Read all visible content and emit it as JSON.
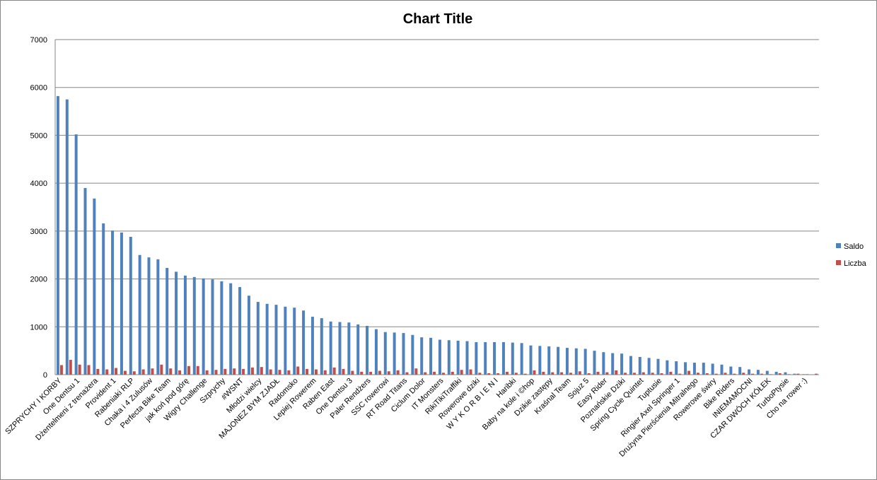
{
  "chart_data": {
    "type": "bar",
    "title": "Chart Title",
    "categories": [
      "SZPRYCHY I KORBY",
      null,
      "One Dentsu 1",
      null,
      "Dżentelmeni z trenażera",
      null,
      "Provident 1",
      null,
      "Rabeniaki RLP",
      null,
      "Chaka i 4 Zulusów",
      null,
      "Perfecta Bike Team",
      null,
      "jak koń pod górę",
      null,
      "Wigry Challenge",
      null,
      "Szprychy",
      null,
      "#WSNT",
      null,
      "Młodzi wielcy",
      null,
      "MAJONEZ BYM ZJADŁ",
      null,
      "Radomsko",
      null,
      "Lepiej Rowerem",
      null,
      "Raben East",
      null,
      "One Dentsu 3",
      null,
      "Paler Rendżers",
      null,
      "SSC rowerowi",
      null,
      "RT Road Titans",
      null,
      "Ciclum Dolor",
      null,
      "IT Monsters",
      null,
      "RikiTikiTraffiki",
      null,
      "Rowerowe dziki",
      null,
      "W Y K O R B I E N I",
      null,
      "Haribki",
      null,
      "Baby na kole i ©hop",
      null,
      "Dzikie zastępy",
      null,
      "Kraśnal Team",
      null,
      "Sojuz 5",
      null,
      "Easy Rider",
      null,
      "Poznańskie Dziki",
      null,
      "Spring Cycle Quintet",
      null,
      "Tuptusie",
      null,
      "Ringier Axel Springer 1",
      null,
      "Drużyna Pierścienia Mitralnego",
      null,
      "Rowerowe świry",
      null,
      "Bike Riders",
      null,
      "INIEMAMOCNI",
      null,
      "CZAR DWÓCH KÓŁEK",
      null,
      "TurboPtysie",
      null,
      "Cho na rower :)",
      null
    ],
    "series": [
      {
        "name": "Saldo",
        "color": "#4f81bd",
        "values": [
          5820,
          5750,
          5020,
          3900,
          3680,
          3160,
          3010,
          2970,
          2880,
          2500,
          2450,
          2410,
          2230,
          2150,
          2070,
          2040,
          2010,
          1990,
          1950,
          1910,
          1830,
          1650,
          1520,
          1480,
          1460,
          1420,
          1400,
          1340,
          1210,
          1180,
          1110,
          1100,
          1090,
          1050,
          1020,
          950,
          890,
          880,
          870,
          830,
          780,
          770,
          730,
          720,
          710,
          700,
          680,
          680,
          680,
          680,
          670,
          660,
          610,
          600,
          590,
          580,
          560,
          550,
          540,
          500,
          470,
          450,
          440,
          390,
          370,
          350,
          330,
          300,
          280,
          260,
          250,
          250,
          230,
          210,
          170,
          160,
          110,
          100,
          80,
          60,
          50,
          20,
          10,
          5
        ]
      },
      {
        "name": "Liczba",
        "color": "#c0504d",
        "values": [
          200,
          310,
          210,
          200,
          120,
          110,
          140,
          80,
          70,
          110,
          130,
          210,
          130,
          90,
          180,
          180,
          90,
          100,
          120,
          130,
          120,
          150,
          160,
          110,
          100,
          90,
          170,
          120,
          110,
          90,
          150,
          120,
          80,
          60,
          60,
          80,
          70,
          90,
          50,
          130,
          50,
          60,
          40,
          60,
          100,
          110,
          40,
          30,
          30,
          60,
          40,
          20,
          90,
          60,
          50,
          50,
          40,
          70,
          30,
          60,
          50,
          90,
          40,
          40,
          50,
          40,
          30,
          60,
          20,
          80,
          40,
          30,
          20,
          40,
          20,
          40,
          20,
          20,
          10,
          30,
          10,
          20,
          10,
          20
        ]
      }
    ],
    "ylim": [
      0,
      7000
    ],
    "yticks": [
      0,
      1000,
      2000,
      3000,
      4000,
      5000,
      6000,
      7000
    ],
    "grid": true,
    "legend": "right"
  }
}
